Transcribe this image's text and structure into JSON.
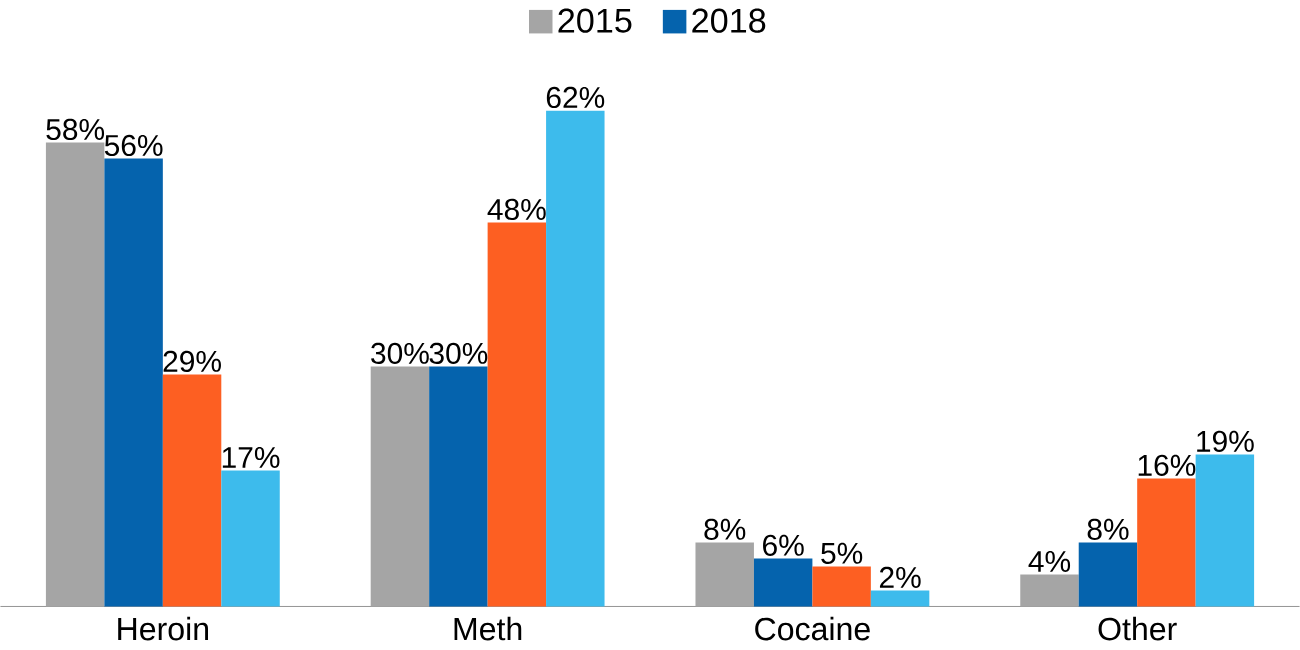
{
  "chart_data": {
    "type": "bar",
    "categories": [
      "Heroin",
      "Meth",
      "Cocaine",
      "Other"
    ],
    "series": [
      {
        "name": "2015",
        "color": "#a5a5a5",
        "values": [
          58,
          30,
          8,
          4
        ],
        "value_labels": [
          "58%",
          "30%",
          "8%",
          "4%"
        ]
      },
      {
        "name": "2018",
        "color": "#0563ad",
        "values": [
          56,
          30,
          6,
          8
        ],
        "value_labels": [
          "56%",
          "30%",
          "6%",
          "8%"
        ]
      },
      {
        "color": "#fd5f22",
        "values": [
          29,
          48,
          5,
          16
        ],
        "value_labels": [
          "29%",
          "48%",
          "5%",
          "16%"
        ]
      },
      {
        "color": "#3dbbec",
        "values": [
          17,
          62,
          2,
          19
        ],
        "value_labels": [
          "17%",
          "62%",
          "2%",
          "19%"
        ]
      }
    ],
    "legend": "top"
  }
}
